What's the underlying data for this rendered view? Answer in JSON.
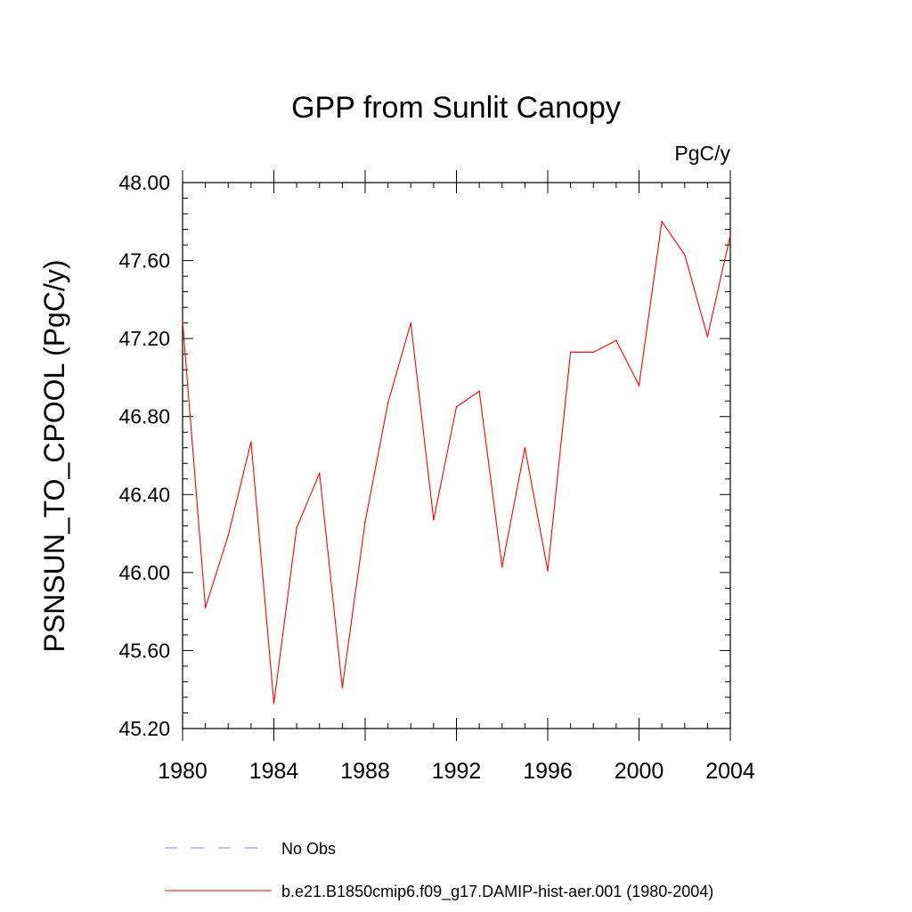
{
  "chart_data": {
    "type": "line",
    "title": "GPP from Sunlit Canopy",
    "units_label": "PgC/y",
    "ylabel": "PSNSUN_TO_CPOOL  (PgC/y)",
    "xlabel": "",
    "xlim": [
      1980,
      2004
    ],
    "ylim": [
      45.2,
      48.0
    ],
    "x_ticks": [
      1980,
      1984,
      1988,
      1992,
      1996,
      2000,
      2004
    ],
    "x_tick_labels": [
      "1980",
      "1984",
      "1988",
      "1992",
      "1996",
      "2000",
      "2004"
    ],
    "y_ticks": [
      45.2,
      45.6,
      46.0,
      46.4,
      46.8,
      47.2,
      47.6,
      48.0
    ],
    "y_tick_labels": [
      "45.20",
      "45.60",
      "46.00",
      "46.40",
      "46.80",
      "47.20",
      "47.60",
      "48.00"
    ],
    "grid": false,
    "legend_position": "bottom",
    "series": [
      {
        "name": "No Obs",
        "color": "#8080e0",
        "style": "dashed",
        "x": [],
        "values": []
      },
      {
        "name": "b.e21.B1850cmip6.f09_g17.DAMIP-hist-aer.001 (1980-2004)",
        "color": "#ff0000",
        "style": "solid",
        "x": [
          1980,
          1981,
          1982,
          1983,
          1984,
          1985,
          1986,
          1987,
          1988,
          1989,
          1990,
          1991,
          1992,
          1993,
          1994,
          1995,
          1996,
          1997,
          1998,
          1999,
          2000,
          2001,
          2002,
          2003,
          2004
        ],
        "values": [
          47.29,
          45.82,
          46.19,
          46.67,
          45.33,
          46.23,
          46.51,
          45.41,
          46.26,
          46.87,
          47.28,
          46.27,
          46.85,
          46.93,
          46.03,
          46.64,
          46.01,
          47.13,
          47.13,
          47.19,
          46.96,
          47.8,
          47.63,
          47.21,
          47.73
        ]
      }
    ]
  }
}
